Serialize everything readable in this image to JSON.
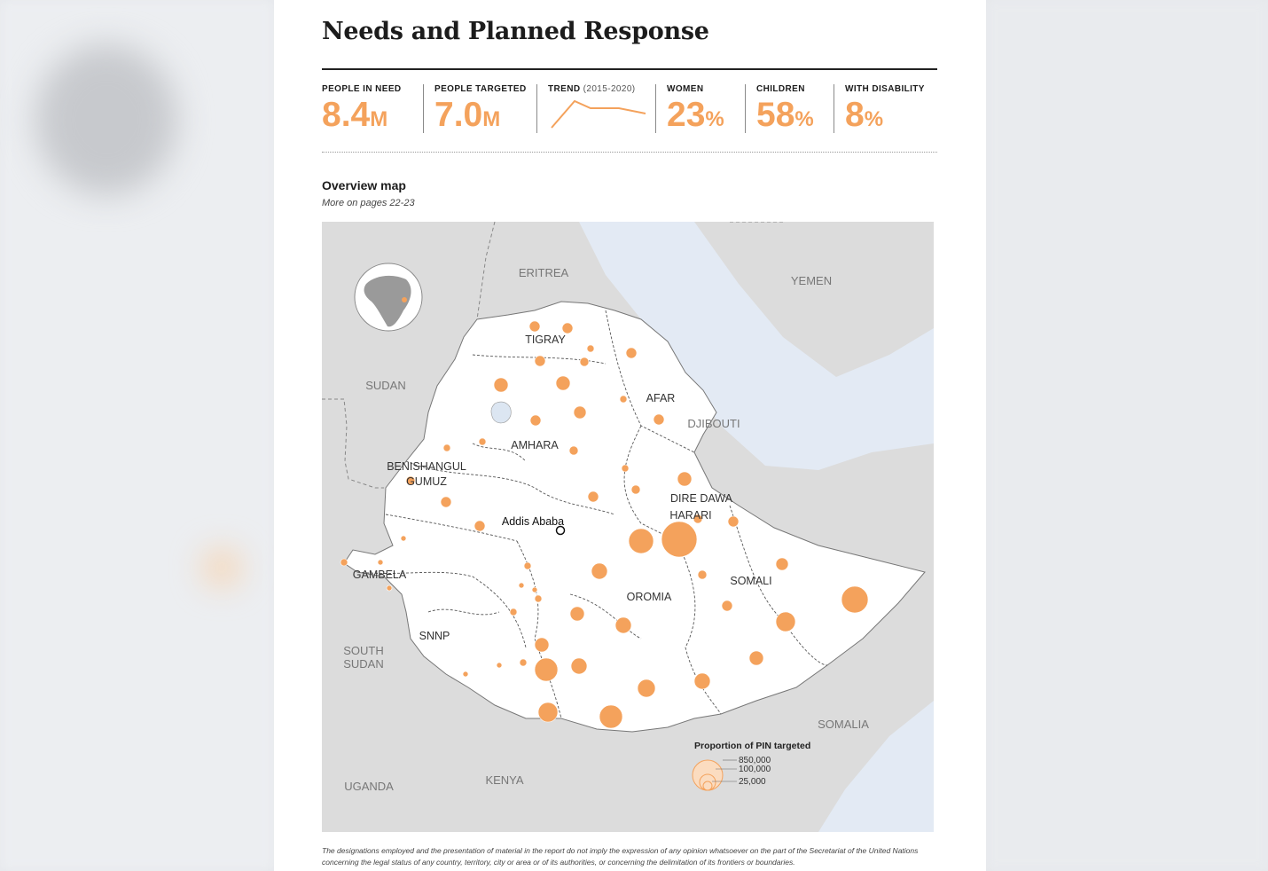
{
  "title": "Needs and Planned Response",
  "kpis": [
    {
      "label": "PEOPLE IN NEED",
      "value": "8.4",
      "unit": "M"
    },
    {
      "label": "PEOPLE TARGETED",
      "value": "7.0",
      "unit": "M"
    },
    {
      "label": "TREND",
      "label_sub": "(2015-2020)"
    },
    {
      "label": "WOMEN",
      "value": "23",
      "unit": "%"
    },
    {
      "label": "CHILDREN",
      "value": "58",
      "unit": "%"
    },
    {
      "label": "WITH DISABILITY",
      "value": "8",
      "unit": "%"
    }
  ],
  "section": {
    "title": "Overview map",
    "subtitle": "More on pages 22-23"
  },
  "map": {
    "countries": [
      "ERITREA",
      "YEMEN",
      "SUDAN",
      "DJIBOUTI",
      "SOUTH",
      "SUDAN",
      "SOMALIA",
      "UGANDA",
      "KENYA"
    ],
    "regions": [
      "TIGRAY",
      "AFAR",
      "AMHARA",
      "BENISHANGUL",
      "GUMUZ",
      "DIRE DAWA",
      "HARARI",
      "GAMBELA",
      "OROMIA",
      "SOMALI",
      "SNNP"
    ],
    "capital": "Addis Ababa",
    "legend": {
      "title": "Proportion of PIN targeted",
      "values": [
        "850,000",
        "100,000",
        "25,000"
      ]
    }
  },
  "disclaimer_line1": "The designations employed and the presentation of material in the report do not imply the expression of any opinion whatsoever on the part of the Secretariat of the United Nations",
  "disclaimer_line2": "concerning the legal status of any country, territory, city or area or of its authorities, or concerning the delimitation of its frontiers or boundaries.",
  "colors": {
    "accent": "#f4a25c",
    "accent_light": "#fbdcc0",
    "land_outside": "#dcdcdc",
    "sea": "#e3eaf4",
    "ethiopia": "#ffffff"
  }
}
